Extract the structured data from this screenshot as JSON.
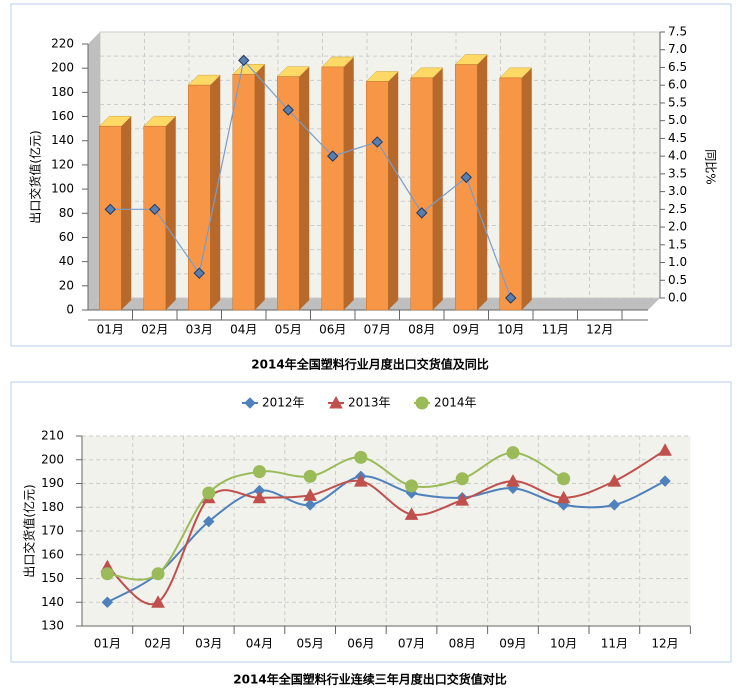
{
  "chart_data": [
    {
      "type": "bar",
      "title": "2014年全国塑料行业月度出口交货值及同比",
      "y_label": "出口交货值(亿元)",
      "y2_label": "同比%",
      "categories": [
        "01月",
        "02月",
        "03月",
        "04月",
        "05月",
        "06月",
        "07月",
        "08月",
        "09月",
        "10月",
        "11月",
        "12月"
      ],
      "series": [
        {
          "type": "bar",
          "color": "#f79646",
          "values": [
            152,
            152,
            186,
            195,
            193,
            201,
            189,
            192,
            203,
            192,
            null,
            null
          ]
        },
        {
          "type": "line",
          "axis": "y2",
          "color": "#7a9cc9",
          "values": [
            2.5,
            2.5,
            0.7,
            6.7,
            5.3,
            4.0,
            4.4,
            2.4,
            3.4,
            0.0,
            null,
            null
          ]
        }
      ],
      "ylim": [
        0,
        220
      ],
      "yticks": [
        0,
        20,
        40,
        60,
        80,
        100,
        120,
        140,
        160,
        180,
        200,
        220
      ],
      "y2lim": [
        0,
        7.5
      ],
      "y2ticks": [
        {
          "value": 0,
          "label": "0.0"
        },
        0.5,
        {
          "value": 1,
          "label": "1.0"
        },
        1.5,
        {
          "value": 2,
          "label": "2.0"
        },
        2.5,
        {
          "value": 3,
          "label": "3.0"
        },
        3.5,
        {
          "value": 4,
          "label": "4.0"
        },
        4.5,
        {
          "value": 5,
          "label": "5.0"
        },
        5.5,
        {
          "value": 6,
          "label": "6.0"
        },
        6.5,
        {
          "value": 7,
          "label": "7.0"
        },
        7.5
      ],
      "grid": true
    },
    {
      "type": "line",
      "title": "2014年全国塑料行业连续三年月度出口交货值对比",
      "y_label": "出口交货值(亿元)",
      "categories": [
        "01月",
        "02月",
        "03月",
        "04月",
        "05月",
        "06月",
        "07月",
        "08月",
        "09月",
        "10月",
        "11月",
        "12月"
      ],
      "series": [
        {
          "name": "2012年",
          "color": "#4f81bd",
          "marker": "diamond",
          "values": [
            140,
            152,
            174,
            187,
            181,
            193,
            186,
            184,
            188,
            181,
            181,
            191
          ]
        },
        {
          "name": "2013年",
          "color": "#c0504d",
          "marker": "triangle",
          "values": [
            155,
            140,
            184,
            184,
            185,
            191,
            177,
            183,
            191,
            184,
            191,
            204
          ]
        },
        {
          "name": "2014年",
          "color": "#9bbb59",
          "marker": "circle",
          "values": [
            152,
            152,
            186,
            195,
            193,
            201,
            189,
            192,
            203,
            192,
            null,
            null
          ]
        }
      ],
      "ylim": [
        130,
        210
      ],
      "yticks": [
        130,
        140,
        150,
        160,
        170,
        180,
        190,
        200,
        210
      ],
      "grid": true,
      "legend": "top"
    }
  ]
}
